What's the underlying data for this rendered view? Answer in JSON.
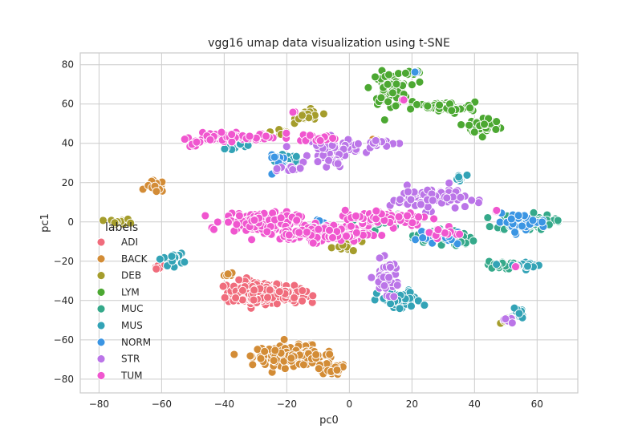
{
  "chart_data": {
    "type": "scatter",
    "title": "vgg16 umap data visualization using t-SNE",
    "xlabel": "pc0",
    "ylabel": "pc1",
    "xlim": [
      -86,
      73
    ],
    "ylim": [
      -87,
      86
    ],
    "xticks": [
      -80,
      -60,
      -40,
      -20,
      0,
      20,
      40,
      60
    ],
    "yticks": [
      -80,
      -60,
      -40,
      -20,
      0,
      20,
      40,
      60,
      80
    ],
    "xtick_labels": [
      "−80",
      "−60",
      "−40",
      "−20",
      "0",
      "20",
      "40",
      "60"
    ],
    "ytick_labels": [
      "−80",
      "−60",
      "−40",
      "−20",
      "0",
      "20",
      "40",
      "60",
      "80"
    ],
    "grid": true,
    "legend": {
      "title": "labels",
      "placement": "lower-left",
      "entries": [
        "ADI",
        "BACK",
        "DEB",
        "LYM",
        "MUC",
        "MUS",
        "NORM",
        "STR",
        "TUM"
      ]
    },
    "series": [
      {
        "name": "ADI",
        "color": "#f06c7c",
        "clusters": [
          {
            "cx": -30,
            "cy": -36,
            "rx": 9,
            "ry": 6,
            "n": 160
          },
          {
            "cx": -20,
            "cy": -37,
            "rx": 6,
            "ry": 4,
            "n": 70
          },
          {
            "cx": -61,
            "cy": -23,
            "rx": 2,
            "ry": 1.5,
            "n": 8
          }
        ]
      },
      {
        "name": "BACK",
        "color": "#d38c36",
        "clusters": [
          {
            "cx": -18,
            "cy": -68,
            "rx": 13,
            "ry": 5,
            "n": 130
          },
          {
            "cx": -6,
            "cy": -75,
            "rx": 5,
            "ry": 3,
            "n": 40
          },
          {
            "cx": -62,
            "cy": 18,
            "rx": 3,
            "ry": 3,
            "n": 16
          },
          {
            "cx": -39,
            "cy": -27,
            "rx": 2,
            "ry": 1.5,
            "n": 6
          },
          {
            "cx": 8,
            "cy": 41,
            "rx": 2,
            "ry": 1.5,
            "n": 4
          }
        ]
      },
      {
        "name": "DEB",
        "color": "#a59d2c",
        "clusters": [
          {
            "cx": -13,
            "cy": 54,
            "rx": 4,
            "ry": 3,
            "n": 25
          },
          {
            "cx": -73,
            "cy": 0,
            "rx": 4,
            "ry": 1.5,
            "n": 15
          },
          {
            "cx": -22,
            "cy": 46,
            "rx": 3,
            "ry": 2,
            "n": 10
          },
          {
            "cx": 0,
            "cy": -12,
            "rx": 6,
            "ry": 3,
            "n": 12
          },
          {
            "cx": 50,
            "cy": -50,
            "rx": 2,
            "ry": 1.5,
            "n": 5
          }
        ]
      },
      {
        "name": "LYM",
        "color": "#4ca832",
        "clusters": [
          {
            "cx": 13,
            "cy": 68,
            "rx": 6,
            "ry": 8,
            "n": 70
          },
          {
            "cx": 30,
            "cy": 58,
            "rx": 10,
            "ry": 3,
            "n": 60
          },
          {
            "cx": 43,
            "cy": 49,
            "rx": 5,
            "ry": 4,
            "n": 60
          },
          {
            "cx": 20,
            "cy": 76,
            "rx": 4,
            "ry": 1.5,
            "n": 10
          }
        ]
      },
      {
        "name": "MUC",
        "color": "#35a98a",
        "clusters": [
          {
            "cx": 56,
            "cy": 0,
            "rx": 9,
            "ry": 4,
            "n": 80
          },
          {
            "cx": 48,
            "cy": -22,
            "rx": 4,
            "ry": 2,
            "n": 16
          },
          {
            "cx": 30,
            "cy": -8,
            "rx": 10,
            "ry": 5,
            "n": 30
          },
          {
            "cx": 10,
            "cy": 0,
            "rx": 8,
            "ry": 4,
            "n": 20
          }
        ]
      },
      {
        "name": "MUS",
        "color": "#33a3b6",
        "clusters": [
          {
            "cx": 16,
            "cy": -40,
            "rx": 7,
            "ry": 5,
            "n": 60
          },
          {
            "cx": 54,
            "cy": -46,
            "rx": 2,
            "ry": 4,
            "n": 15
          },
          {
            "cx": -57,
            "cy": -19,
            "rx": 4,
            "ry": 3,
            "n": 15
          },
          {
            "cx": -36,
            "cy": 40,
            "rx": 5,
            "ry": 3,
            "n": 15
          },
          {
            "cx": -20,
            "cy": 30,
            "rx": 4,
            "ry": 4,
            "n": 20
          },
          {
            "cx": 35,
            "cy": 22,
            "rx": 2,
            "ry": 3,
            "n": 8
          },
          {
            "cx": 56,
            "cy": -22,
            "rx": 6,
            "ry": 2,
            "n": 16
          }
        ]
      },
      {
        "name": "NORM",
        "color": "#3b95e3",
        "clusters": [
          {
            "cx": 55,
            "cy": 0,
            "rx": 8,
            "ry": 4,
            "n": 30
          },
          {
            "cx": 30,
            "cy": -8,
            "rx": 8,
            "ry": 4,
            "n": 25
          },
          {
            "cx": -22,
            "cy": 30,
            "rx": 4,
            "ry": 4,
            "n": 15
          },
          {
            "cx": 21,
            "cy": 76,
            "rx": 1,
            "ry": 1,
            "n": 2
          },
          {
            "cx": -8,
            "cy": 0,
            "rx": 3,
            "ry": 3,
            "n": 6
          }
        ]
      },
      {
        "name": "STR",
        "color": "#bb75e8",
        "clusters": [
          {
            "cx": -5,
            "cy": 38,
            "rx": 8,
            "ry": 5,
            "n": 60
          },
          {
            "cx": 10,
            "cy": 40,
            "rx": 6,
            "ry": 2,
            "n": 20
          },
          {
            "cx": 25,
            "cy": 12,
            "rx": 12,
            "ry": 6,
            "n": 70
          },
          {
            "cx": 12,
            "cy": -28,
            "rx": 4,
            "ry": 8,
            "n": 50
          },
          {
            "cx": -18,
            "cy": 27,
            "rx": 4,
            "ry": 3,
            "n": 12
          },
          {
            "cx": 51,
            "cy": -50,
            "rx": 2,
            "ry": 2,
            "n": 6
          },
          {
            "cx": -5,
            "cy": 30,
            "rx": 4,
            "ry": 3,
            "n": 15
          }
        ]
      },
      {
        "name": "TUM",
        "color": "#f056cf",
        "clusters": [
          {
            "cx": -38,
            "cy": 43,
            "rx": 12,
            "ry": 2,
            "n": 80
          },
          {
            "cx": -50,
            "cy": 40,
            "rx": 2,
            "ry": 1.5,
            "n": 8
          },
          {
            "cx": -28,
            "cy": 0,
            "rx": 12,
            "ry": 5,
            "n": 150
          },
          {
            "cx": -8,
            "cy": -6,
            "rx": 14,
            "ry": 4,
            "n": 150
          },
          {
            "cx": 12,
            "cy": 2,
            "rx": 14,
            "ry": 4,
            "n": 100
          },
          {
            "cx": -10,
            "cy": 43,
            "rx": 6,
            "ry": 2,
            "n": 20
          },
          {
            "cx": -18,
            "cy": 56,
            "rx": 1,
            "ry": 1,
            "n": 2
          },
          {
            "cx": 47,
            "cy": 5,
            "rx": 1,
            "ry": 1,
            "n": 3
          },
          {
            "cx": 54,
            "cy": -22,
            "rx": 1,
            "ry": 1,
            "n": 2
          },
          {
            "cx": 17,
            "cy": 62,
            "rx": 1,
            "ry": 1,
            "n": 2
          },
          {
            "cx": 30,
            "cy": -6,
            "rx": 6,
            "ry": 3,
            "n": 15
          }
        ]
      }
    ]
  }
}
